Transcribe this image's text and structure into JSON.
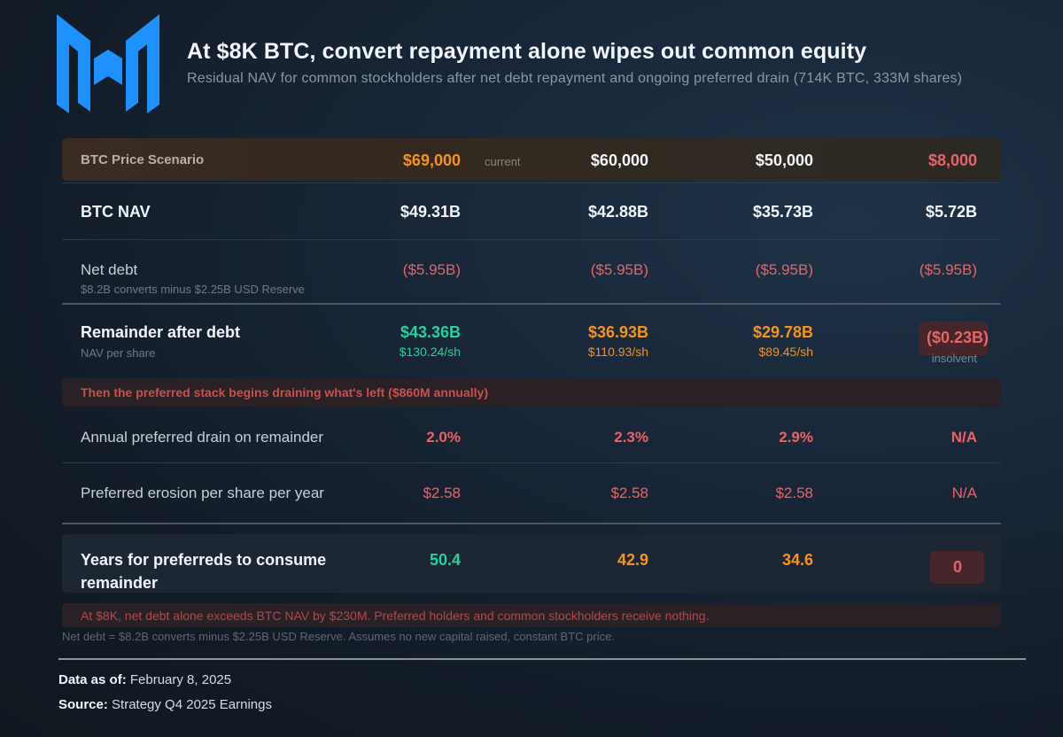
{
  "brand": {
    "logo_color": "#1e90ff"
  },
  "header": {
    "title": "At $8K BTC, convert repayment alone wipes out common equity",
    "subtitle": "Residual NAV for common stockholders after net debt repayment and ongoing preferred drain (714K BTC, 333M shares)"
  },
  "table": {
    "scenario_row": {
      "label": "BTC Price Scenario",
      "values": [
        "$69,000",
        "$60,000",
        "$50,000",
        "$8,000"
      ],
      "current_tag": "current"
    },
    "btc_nav": {
      "label": "BTC NAV",
      "values": [
        "$49.31B",
        "$42.88B",
        "$35.73B",
        "$5.72B"
      ]
    },
    "net_debt": {
      "label": "Net debt",
      "sublabel": "$8.2B converts minus $2.25B USD Reserve",
      "values": [
        "($5.95B)",
        "($5.95B)",
        "($5.95B)",
        "($5.95B)"
      ]
    },
    "remainder": {
      "label": "Remainder after debt",
      "sublabel": "NAV per share",
      "values": [
        "$43.36B",
        "$36.93B",
        "$29.78B",
        "($0.23B)"
      ],
      "per_share": [
        "$130.24/sh",
        "$110.93/sh",
        "$89.45/sh",
        "insolvent"
      ]
    },
    "banner": "Then the preferred stack begins draining what's left ($860M annually)",
    "annual_drain": {
      "label": "Annual preferred drain on remainder",
      "values": [
        "2.0%",
        "2.3%",
        "2.9%",
        "N/A"
      ]
    },
    "erosion": {
      "label": "Preferred erosion per share per year",
      "values": [
        "$2.58",
        "$2.58",
        "$2.58",
        "N/A"
      ]
    },
    "years": {
      "label_line1": "Years for preferreds to consume",
      "label_line2": "remainder",
      "values": [
        "50.4",
        "42.9",
        "34.6",
        "0"
      ]
    },
    "warning": "At $8K, net debt alone exceeds BTC NAV by $230M. Preferred holders and common stockholders receive nothing.",
    "footnote": "Net debt = $8.2B converts minus $2.25B USD Reserve. Assumes no new capital raised, constant BTC price."
  },
  "meta": {
    "date_label": "Data as of:",
    "date_value": "February 8, 2025",
    "source_label": "Source:",
    "source_value": "Strategy Q4 2025 Earnings"
  },
  "colors": {
    "orange": "#f7931a",
    "red": "#e86466",
    "green": "#24d39a"
  }
}
